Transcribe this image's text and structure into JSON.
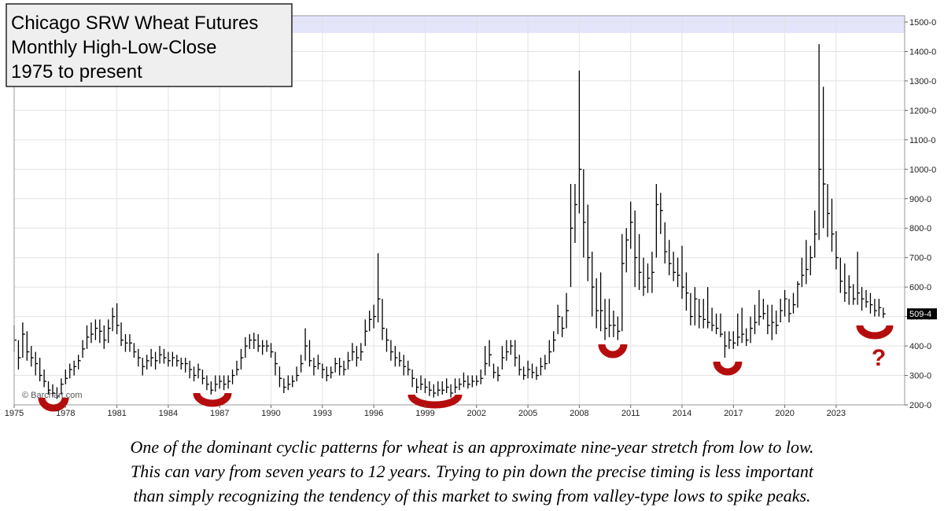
{
  "chart_data": {
    "type": "hlc",
    "title": [
      "Chicago SRW Wheat Futures",
      "Monthly High-Low-Close",
      "1975 to present"
    ],
    "source": "© Barchart.com",
    "last_label": "509-4",
    "annotation": "?",
    "caption": [
      "One of the dominant cyclic patterns for wheat is an approximate nine-year stretch from low to low.",
      "This can vary from seven years to 12 years. Trying to pin down the precise timing is less important",
      "than simply recognizing the tendency of this market to swing from valley-type lows to spike peaks."
    ],
    "color": "#000000",
    "grid": true,
    "xlim": [
      1975,
      2027
    ],
    "ylim": [
      200,
      1500
    ],
    "xticks": [
      1975,
      1978,
      1981,
      1984,
      1987,
      1990,
      1993,
      1996,
      1999,
      2002,
      2005,
      2008,
      2011,
      2014,
      2017,
      2020,
      2023
    ],
    "yticks": [
      {
        "value": 200,
        "label": "200-0"
      },
      {
        "value": 300,
        "label": "300-0"
      },
      {
        "value": 400,
        "label": "400-0"
      },
      {
        "value": 500,
        "label": "500-0"
      },
      {
        "value": 600,
        "label": "600-0"
      },
      {
        "value": 700,
        "label": "700-0"
      },
      {
        "value": 800,
        "label": "800-0"
      },
      {
        "value": 900,
        "label": "900-0"
      },
      {
        "value": 1000,
        "label": "1000-0"
      },
      {
        "value": 1100,
        "label": "1100-0"
      },
      {
        "value": 1200,
        "label": "1200-0"
      },
      {
        "value": 1300,
        "label": "1300-0"
      },
      {
        "value": 1400,
        "label": "1400-0"
      },
      {
        "value": 1500,
        "label": "1500-0"
      }
    ],
    "x": [
      1975,
      1975.25,
      1975.5,
      1975.75,
      1976,
      1976.25,
      1976.5,
      1976.75,
      1977,
      1977.25,
      1977.5,
      1977.75,
      1978,
      1978.25,
      1978.5,
      1978.75,
      1979,
      1979.25,
      1979.5,
      1979.75,
      1980,
      1980.25,
      1980.5,
      1980.75,
      1981,
      1981.25,
      1981.5,
      1981.75,
      1982,
      1982.25,
      1982.5,
      1982.75,
      1983,
      1983.25,
      1983.5,
      1983.75,
      1984,
      1984.25,
      1984.5,
      1984.75,
      1985,
      1985.25,
      1985.5,
      1985.75,
      1986,
      1986.25,
      1986.5,
      1986.75,
      1987,
      1987.25,
      1987.5,
      1987.75,
      1988,
      1988.25,
      1988.5,
      1988.75,
      1989,
      1989.25,
      1989.5,
      1989.75,
      1990,
      1990.25,
      1990.5,
      1990.75,
      1991,
      1991.25,
      1991.5,
      1991.75,
      1992,
      1992.25,
      1992.5,
      1992.75,
      1993,
      1993.25,
      1993.5,
      1993.75,
      1994,
      1994.25,
      1994.5,
      1994.75,
      1995,
      1995.25,
      1995.5,
      1995.75,
      1996,
      1996.25,
      1996.5,
      1996.75,
      1997,
      1997.25,
      1997.5,
      1997.75,
      1998,
      1998.25,
      1998.5,
      1998.75,
      1999,
      1999.25,
      1999.5,
      1999.75,
      2000,
      2000.25,
      2000.5,
      2000.75,
      2001,
      2001.25,
      2001.5,
      2001.75,
      2002,
      2002.25,
      2002.5,
      2002.75,
      2003,
      2003.25,
      2003.5,
      2003.75,
      2004,
      2004.25,
      2004.5,
      2004.75,
      2005,
      2005.25,
      2005.5,
      2005.75,
      2006,
      2006.25,
      2006.5,
      2006.75,
      2007,
      2007.25,
      2007.5,
      2007.75,
      2008,
      2008.25,
      2008.5,
      2008.75,
      2009,
      2009.25,
      2009.5,
      2009.75,
      2010,
      2010.25,
      2010.5,
      2010.75,
      2011,
      2011.25,
      2011.5,
      2011.75,
      2012,
      2012.25,
      2012.5,
      2012.75,
      2013,
      2013.25,
      2013.5,
      2013.75,
      2014,
      2014.25,
      2014.5,
      2014.75,
      2015,
      2015.25,
      2015.5,
      2015.75,
      2016,
      2016.25,
      2016.5,
      2016.75,
      2017,
      2017.25,
      2017.5,
      2017.75,
      2018,
      2018.25,
      2018.5,
      2018.75,
      2019,
      2019.25,
      2019.5,
      2019.75,
      2020,
      2020.25,
      2020.5,
      2020.75,
      2021,
      2021.25,
      2021.5,
      2021.75,
      2022,
      2022.25,
      2022.5,
      2022.75,
      2023,
      2023.25,
      2023.5,
      2023.75,
      2024,
      2024.25,
      2024.5,
      2024.75,
      2025,
      2025.25,
      2025.5,
      2025.75
    ],
    "high": [
      470,
      420,
      480,
      450,
      400,
      380,
      360,
      320,
      280,
      270,
      260,
      290,
      320,
      340,
      350,
      370,
      420,
      470,
      480,
      490,
      490,
      470,
      490,
      530,
      545,
      480,
      440,
      440,
      410,
      390,
      360,
      370,
      390,
      380,
      400,
      390,
      380,
      380,
      370,
      360,
      360,
      350,
      330,
      340,
      320,
      300,
      280,
      300,
      300,
      300,
      300,
      320,
      350,
      390,
      430,
      440,
      445,
      440,
      420,
      420,
      410,
      380,
      330,
      290,
      300,
      300,
      330,
      370,
      460,
      420,
      360,
      370,
      340,
      330,
      330,
      360,
      360,
      350,
      380,
      410,
      400,
      410,
      490,
      520,
      540,
      715,
      560,
      460,
      420,
      400,
      380,
      370,
      350,
      320,
      290,
      300,
      290,
      280,
      270,
      280,
      280,
      290,
      270,
      290,
      290,
      310,
      300,
      300,
      300,
      320,
      400,
      420,
      340,
      330,
      400,
      420,
      420,
      420,
      370,
      330,
      350,
      340,
      330,
      360,
      370,
      420,
      450,
      540,
      500,
      580,
      950,
      950,
      1335,
      1000,
      880,
      720,
      630,
      650,
      560,
      560,
      520,
      500,
      780,
      800,
      890,
      860,
      780,
      700,
      680,
      720,
      950,
      920,
      820,
      760,
      720,
      700,
      740,
      650,
      580,
      600,
      560,
      560,
      600,
      530,
      510,
      510,
      450,
      450,
      450,
      510,
      530,
      460,
      500,
      540,
      590,
      560,
      540,
      540,
      520,
      560,
      590,
      560,
      580,
      620,
      700,
      760,
      740,
      860,
      1425,
      1280,
      950,
      900,
      790,
      700,
      680,
      640,
      610,
      720,
      600,
      590,
      580,
      560,
      560,
      530
    ],
    "low": [
      380,
      320,
      360,
      350,
      330,
      300,
      280,
      260,
      235,
      230,
      220,
      235,
      270,
      290,
      300,
      320,
      360,
      390,
      410,
      420,
      410,
      390,
      410,
      450,
      440,
      400,
      380,
      380,
      360,
      330,
      300,
      320,
      330,
      320,
      340,
      340,
      330,
      330,
      330,
      320,
      310,
      290,
      280,
      290,
      270,
      250,
      235,
      245,
      255,
      250,
      255,
      270,
      300,
      320,
      360,
      390,
      390,
      380,
      370,
      380,
      360,
      300,
      260,
      240,
      250,
      260,
      280,
      310,
      350,
      330,
      300,
      320,
      290,
      280,
      290,
      310,
      300,
      300,
      320,
      350,
      330,
      350,
      400,
      450,
      460,
      480,
      420,
      380,
      350,
      330,
      330,
      300,
      300,
      260,
      240,
      250,
      240,
      230,
      225,
      230,
      235,
      240,
      225,
      240,
      250,
      260,
      255,
      260,
      265,
      270,
      300,
      330,
      290,
      280,
      320,
      350,
      370,
      330,
      300,
      285,
      290,
      290,
      285,
      300,
      320,
      340,
      380,
      440,
      430,
      460,
      600,
      750,
      850,
      700,
      620,
      500,
      460,
      450,
      420,
      430,
      430,
      420,
      450,
      650,
      730,
      600,
      590,
      570,
      580,
      580,
      700,
      780,
      680,
      640,
      620,
      600,
      560,
      520,
      470,
      470,
      460,
      460,
      460,
      450,
      440,
      430,
      360,
      390,
      390,
      400,
      410,
      400,
      410,
      440,
      470,
      490,
      440,
      420,
      440,
      480,
      500,
      480,
      510,
      530,
      600,
      610,
      640,
      700,
      760,
      800,
      770,
      720,
      660,
      580,
      550,
      540,
      540,
      540,
      520,
      530,
      510,
      500,
      500,
      495
    ],
    "close": [
      420,
      360,
      440,
      380,
      360,
      340,
      300,
      280,
      250,
      240,
      230,
      270,
      290,
      320,
      330,
      350,
      390,
      430,
      440,
      460,
      450,
      420,
      460,
      500,
      470,
      420,
      410,
      410,
      380,
      360,
      330,
      350,
      360,
      350,
      370,
      360,
      350,
      360,
      350,
      340,
      340,
      320,
      300,
      320,
      290,
      270,
      250,
      270,
      280,
      270,
      280,
      300,
      320,
      360,
      400,
      420,
      420,
      400,
      400,
      400,
      380,
      340,
      290,
      260,
      270,
      280,
      300,
      340,
      400,
      350,
      330,
      340,
      320,
      300,
      310,
      340,
      330,
      320,
      350,
      380,
      360,
      380,
      450,
      490,
      500,
      560,
      460,
      420,
      380,
      360,
      350,
      330,
      320,
      290,
      260,
      270,
      260,
      250,
      240,
      250,
      250,
      260,
      240,
      260,
      270,
      280,
      270,
      280,
      280,
      290,
      340,
      370,
      310,
      300,
      360,
      380,
      400,
      360,
      320,
      300,
      320,
      310,
      300,
      330,
      340,
      380,
      420,
      500,
      460,
      520,
      800,
      880,
      1000,
      820,
      700,
      600,
      520,
      520,
      460,
      470,
      470,
      450,
      680,
      760,
      820,
      700,
      650,
      600,
      630,
      650,
      880,
      860,
      720,
      680,
      650,
      640,
      600,
      580,
      500,
      560,
      500,
      490,
      480,
      470,
      460,
      440,
      400,
      420,
      410,
      430,
      440,
      420,
      460,
      480,
      500,
      510,
      470,
      480,
      470,
      520,
      560,
      510,
      540,
      610,
      640,
      660,
      700,
      780,
      1000,
      950,
      850,
      780,
      700,
      620,
      580,
      600,
      560,
      580,
      560,
      550,
      540,
      520,
      530,
      509
    ]
  }
}
